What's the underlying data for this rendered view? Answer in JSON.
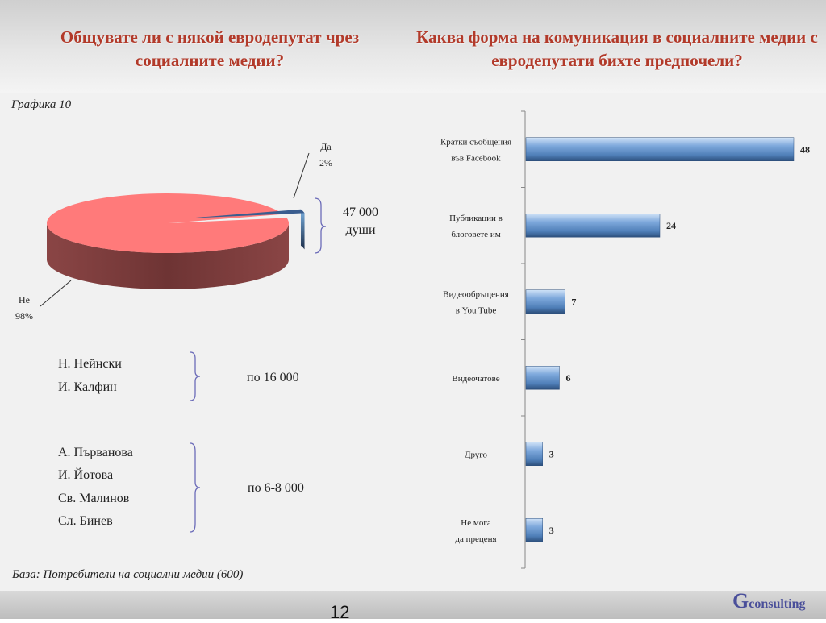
{
  "header": {
    "left_title": "Общувате ли с някой евродепутат чрез социалните медии?",
    "right_title": "Каква форма на комуникация в социалните медии с евродепутати бихте предпочели?"
  },
  "figure_label": "Графика 10",
  "base_note": "База: Потребители на социални медии (600)",
  "page_number": "12",
  "logo": {
    "letter": "G",
    "rest": "consulting"
  },
  "pie_note": {
    "line1": "47 000",
    "line2": "души"
  },
  "groups": [
    {
      "names": [
        "Н. Нейнски",
        "И. Калфин"
      ],
      "value": "по  16 000"
    },
    {
      "names": [
        "А. Първанова",
        "И. Йотова",
        "Св. Малинов",
        "Сл. Бинев"
      ],
      "value": "по  6-8 000"
    }
  ],
  "colors": {
    "title_red": "#b23a2a",
    "pie_no": "#ff7a7a",
    "pie_no_side": "#7a3a3a",
    "pie_yes": "#3a5d8f",
    "bar": "#7fa9dc"
  },
  "chart_data": [
    {
      "type": "pie",
      "slices": [
        {
          "label": "Да",
          "value": 2,
          "value_label": "2%"
        },
        {
          "label": "Не",
          "value": 98,
          "value_label": "98%"
        }
      ]
    },
    {
      "type": "bar",
      "orientation": "horizontal",
      "categories": [
        [
          "Кратки съобщения",
          "във Facebook"
        ],
        [
          "Публикации в",
          "блоговете им"
        ],
        [
          "Видеообръщения",
          "в You Tube"
        ],
        [
          "Видеочатове"
        ],
        [
          "Друго"
        ],
        [
          "Не мога",
          "да преценя"
        ]
      ],
      "values": [
        48,
        24,
        7,
        6,
        3,
        3
      ],
      "xlim": [
        0,
        50
      ]
    }
  ]
}
